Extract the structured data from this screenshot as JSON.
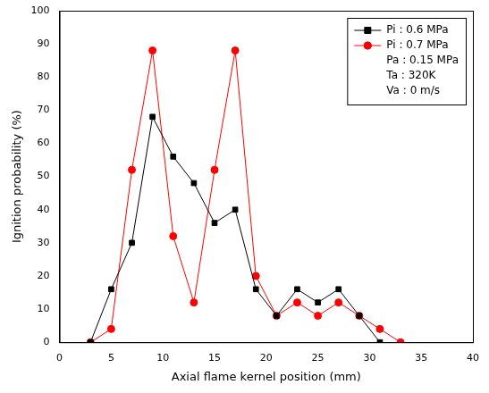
{
  "chart_data": {
    "type": "line",
    "x_label": "Axial flame kernel position (mm)",
    "y_label": "Ignition probability (%)",
    "x": [
      3,
      5,
      7,
      9,
      11,
      13,
      15,
      17,
      19,
      21,
      23,
      25,
      27,
      29,
      31,
      33
    ],
    "series": [
      {
        "name": "Pi : 0.6 MPa",
        "color": "#000000",
        "marker": "square",
        "line_style": "solid",
        "values": [
          0,
          16,
          30,
          68,
          56,
          48,
          36,
          40,
          16,
          8,
          16,
          12,
          16,
          8,
          0,
          null
        ]
      },
      {
        "name": "Pi : 0.7 MPa",
        "color": "#ff0000",
        "marker": "circle",
        "line_style": "solid",
        "values": [
          0,
          4,
          52,
          88,
          32,
          12,
          52,
          88,
          20,
          8,
          12,
          8,
          12,
          8,
          4,
          0
        ]
      }
    ],
    "annotations": [
      "Pa : 0.15 MPa",
      "Ta : 320K",
      "Va : 0 m/s"
    ],
    "xlim": [
      0,
      40
    ],
    "xticks": [
      0,
      5,
      10,
      15,
      20,
      25,
      30,
      35,
      40
    ],
    "ylim": [
      0,
      100
    ],
    "yticks": [
      0,
      10,
      20,
      30,
      40,
      50,
      60,
      70,
      80,
      90,
      100
    ],
    "grid": false,
    "legend": "upper right"
  }
}
